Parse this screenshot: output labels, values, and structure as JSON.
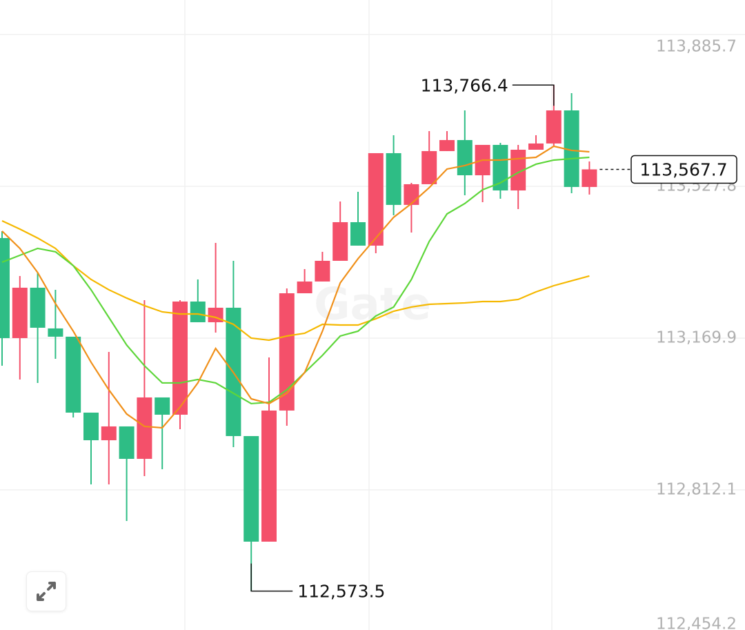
{
  "chart_data": {
    "type": "candlestick",
    "watermark": "Gate",
    "up_color": "#f4506a",
    "down_color": "#2ebd85",
    "open": [
      113405.8,
      113169.9,
      113288.7,
      113192.7,
      113173.2,
      112994.2,
      112929.1,
      112961.7,
      112885.2,
      113030.0,
      112989.3,
      113256.1,
      113207.3,
      113241.5,
      112938.9,
      112690.0,
      112999.1,
      113275.6,
      113303.3,
      113352.1,
      113443.2,
      113387.9,
      113605.9,
      113483.9,
      113532.7,
      113610.8,
      113636.8,
      113553.8,
      113625.4,
      113518.0,
      113614.0,
      113628.7,
      113706.7,
      113526.2
    ],
    "high": [
      113422.1,
      113316.3,
      113324.4,
      113283.8,
      113173.2,
      112994.2,
      113137.4,
      112961.7,
      113259.4,
      113030.0,
      113259.4,
      113308.2,
      113394.4,
      113352.1,
      112938.9,
      113124.3,
      113287.0,
      113332.6,
      113373.3,
      113492.0,
      113514.8,
      113605.9,
      113648.2,
      113535.9,
      113657.9,
      113657.9,
      113706.7,
      113625.4,
      113630.3,
      113625.4,
      113648.2,
      113766.4,
      113747.4,
      113586.4
    ],
    "low": [
      113104.8,
      113072.3,
      113064.2,
      113121.1,
      112982.8,
      112825.0,
      112825.0,
      112738.8,
      112844.5,
      112860.8,
      112955.2,
      113207.3,
      113182.9,
      112912.9,
      112573.5,
      112690.0,
      112963.3,
      113275.6,
      113303.3,
      113352.1,
      113387.9,
      113370.0,
      113459.5,
      113418.8,
      113532.7,
      113610.8,
      113506.6,
      113490.4,
      113498.5,
      113474.1,
      113614.0,
      113620.5,
      113511.5,
      113508.3
    ],
    "close": [
      113169.9,
      113288.7,
      113194.3,
      113173.2,
      112994.2,
      112929.1,
      112961.7,
      112885.2,
      113030.0,
      112989.3,
      113256.1,
      113207.3,
      113241.5,
      112938.9,
      112690.0,
      112999.1,
      113275.6,
      113303.3,
      113352.1,
      113443.2,
      113387.9,
      113605.9,
      113483.9,
      113532.7,
      113610.8,
      113636.8,
      113553.8,
      113625.4,
      113518.0,
      113614.0,
      113628.7,
      113706.7,
      113526.2,
      113567.7
    ],
    "lines": [
      {
        "color": "#f5b800",
        "values": [
          113446.5,
          113426.9,
          113405.8,
          113381.4,
          113340.7,
          113308.2,
          113283.8,
          113264.3,
          113246.4,
          113231.7,
          113226.8,
          113226.8,
          113218.7,
          113202.4,
          113169.9,
          113165.0,
          113174.8,
          113181.3,
          113202.4,
          113200.8,
          113200.8,
          113215.5,
          113233.3,
          113243.1,
          113249.6,
          113251.2,
          113252.9,
          113256.1,
          113256.1,
          113261.0,
          113278.9,
          113293.5,
          113304.9,
          113316.3
        ]
      },
      {
        "color": "#5ed63a",
        "values": [
          113348.8,
          113365.1,
          113381.4,
          113373.3,
          113340.7,
          113283.8,
          113218.7,
          113153.6,
          113104.8,
          113064.2,
          113064.2,
          113072.3,
          113064.2,
          113039.8,
          113015.4,
          113018.6,
          113047.9,
          113088.6,
          113129.2,
          113174.8,
          113186.2,
          113222.0,
          113243.1,
          113308.2,
          113397.7,
          113462.7,
          113487.1,
          113519.7,
          113535.9,
          113560.3,
          113579.9,
          113589.6,
          113592.9,
          113596.1
        ]
      },
      {
        "color": "#f0901a",
        "values": [
          113422.1,
          113381.4,
          113324.4,
          113251.2,
          113186.2,
          113113.0,
          113047.9,
          112991.0,
          112961.7,
          112958.4,
          113007.2,
          113064.2,
          113145.5,
          113088.6,
          113026.7,
          113015.4,
          113039.8,
          113088.6,
          113186.2,
          113300.0,
          113357.0,
          113405.8,
          113454.6,
          113487.1,
          113524.5,
          113568.5,
          113576.6,
          113589.6,
          113589.6,
          113592.9,
          113596.1,
          113622.2,
          113612.4,
          113609.1
        ]
      }
    ],
    "ylim": [
      112481.7,
      113967.0
    ],
    "yticks": [
      {
        "value": 113885.7,
        "label": "113,885.7"
      },
      {
        "value": 113527.8,
        "label": "113,527.8"
      },
      {
        "value": 113169.9,
        "label": "113,169.9"
      },
      {
        "value": 112812.1,
        "label": "112,812.1"
      },
      {
        "value": 112454.2,
        "label": "112,454.2"
      }
    ],
    "grid": true,
    "max_marker": {
      "value": 113766.4,
      "label": "113,766.4"
    },
    "min_marker": {
      "value": 112573.5,
      "label": "112,573.5"
    },
    "last_price": {
      "value": 113567.7,
      "label": "113,567.7"
    }
  }
}
